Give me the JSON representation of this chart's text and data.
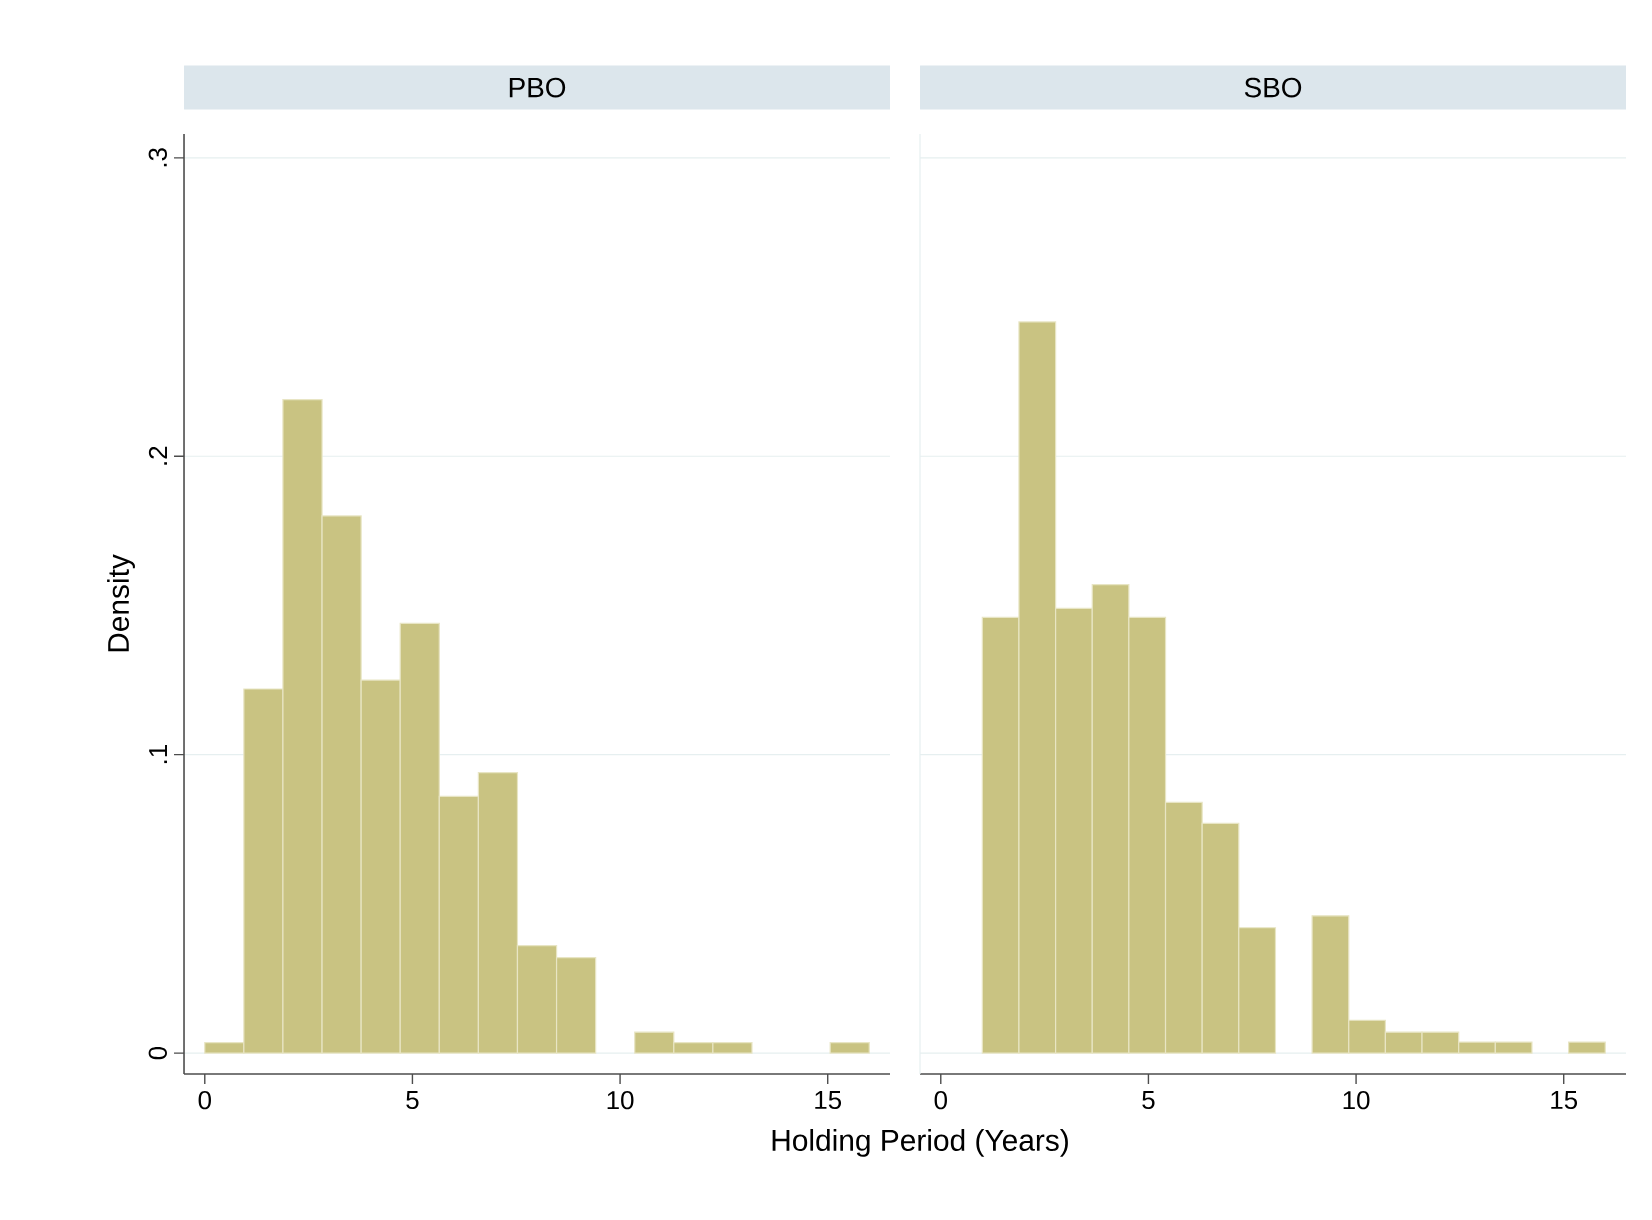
{
  "chart_data": [
    {
      "type": "histogram",
      "title": "PBO",
      "xlabel": "Holding Period (Years)",
      "ylabel": "Density",
      "color": "#c9c382",
      "bins": [
        0,
        0.941,
        1.882,
        2.824,
        3.765,
        4.706,
        5.647,
        6.588,
        7.529,
        8.471,
        9.412,
        10.353,
        11.294,
        12.235,
        13.176,
        14.118,
        15.059,
        16
      ],
      "values": [
        0.0035,
        0.122,
        0.219,
        0.18,
        0.125,
        0.144,
        0.086,
        0.094,
        0.036,
        0.032,
        0,
        0.007,
        0.0035,
        0.0035,
        0,
        0,
        0.0035
      ],
      "xlim": [
        -0.5,
        16.5
      ],
      "ylim": [
        -0.007,
        0.308
      ],
      "xticks": [
        0,
        5,
        10,
        15
      ],
      "yticks": [
        0,
        {
          "value": 0.1,
          "label": ".1"
        },
        {
          "value": 0.2,
          "label": ".2"
        },
        {
          "value": 0.3,
          "label": ".3"
        }
      ],
      "grid": "y"
    },
    {
      "type": "histogram",
      "title": "SBO",
      "color": "#c9c382",
      "bins": [
        1,
        1.882,
        2.765,
        3.647,
        4.529,
        5.412,
        6.294,
        7.176,
        8.059,
        8.941,
        9.824,
        10.706,
        11.588,
        12.471,
        13.353,
        14.235,
        15.118,
        16
      ],
      "values": [
        0.146,
        0.245,
        0.149,
        0.157,
        0.146,
        0.084,
        0.077,
        0.042,
        0,
        0.046,
        0.011,
        0.007,
        0.007,
        0.0037,
        0.0037,
        0,
        0.0037
      ],
      "xlim": [
        -0.5,
        16.5
      ],
      "ylim": [
        -0.007,
        0.308
      ],
      "xticks": [
        0,
        5,
        10,
        15
      ],
      "yticks": [
        0,
        0.1,
        0.2,
        0.3
      ],
      "grid": "y",
      "tick_labels": "x"
    }
  ]
}
